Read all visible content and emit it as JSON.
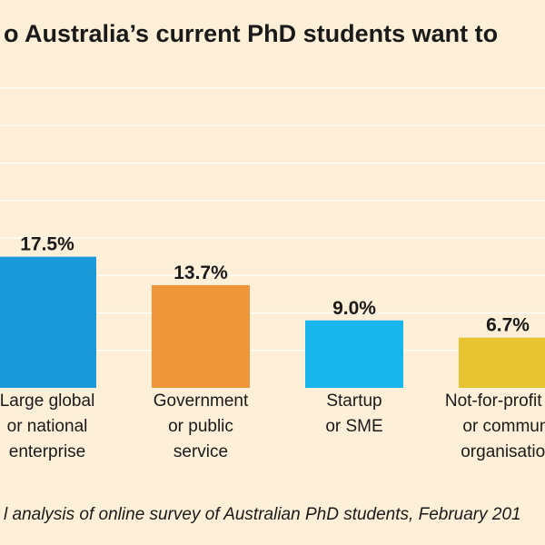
{
  "chart_data": {
    "type": "bar",
    "title": "o Australia’s current PhD students want to",
    "categories": [
      "Large global or national enterprise",
      "Government or public service",
      "Startup or SME",
      "Not-for-profit res or communi organisation"
    ],
    "category_lines": [
      [
        "Large global",
        "or national",
        "enterprise"
      ],
      [
        "Government",
        "or public",
        "service"
      ],
      [
        "Startup",
        "or SME"
      ],
      [
        "Not-for-profit res",
        "or communi",
        "organisation"
      ]
    ],
    "values": [
      17.5,
      13.7,
      9.0,
      6.7
    ],
    "value_labels": [
      "17.5%",
      "13.7%",
      "9.0%",
      "6.7%"
    ],
    "colors": [
      "#1a9ad8",
      "#ef963a",
      "#18b6ec",
      "#e8c432"
    ],
    "ylim": [
      0,
      40
    ],
    "grid": true,
    "source": "l analysis of online survey of Australian PhD students, February 201"
  }
}
